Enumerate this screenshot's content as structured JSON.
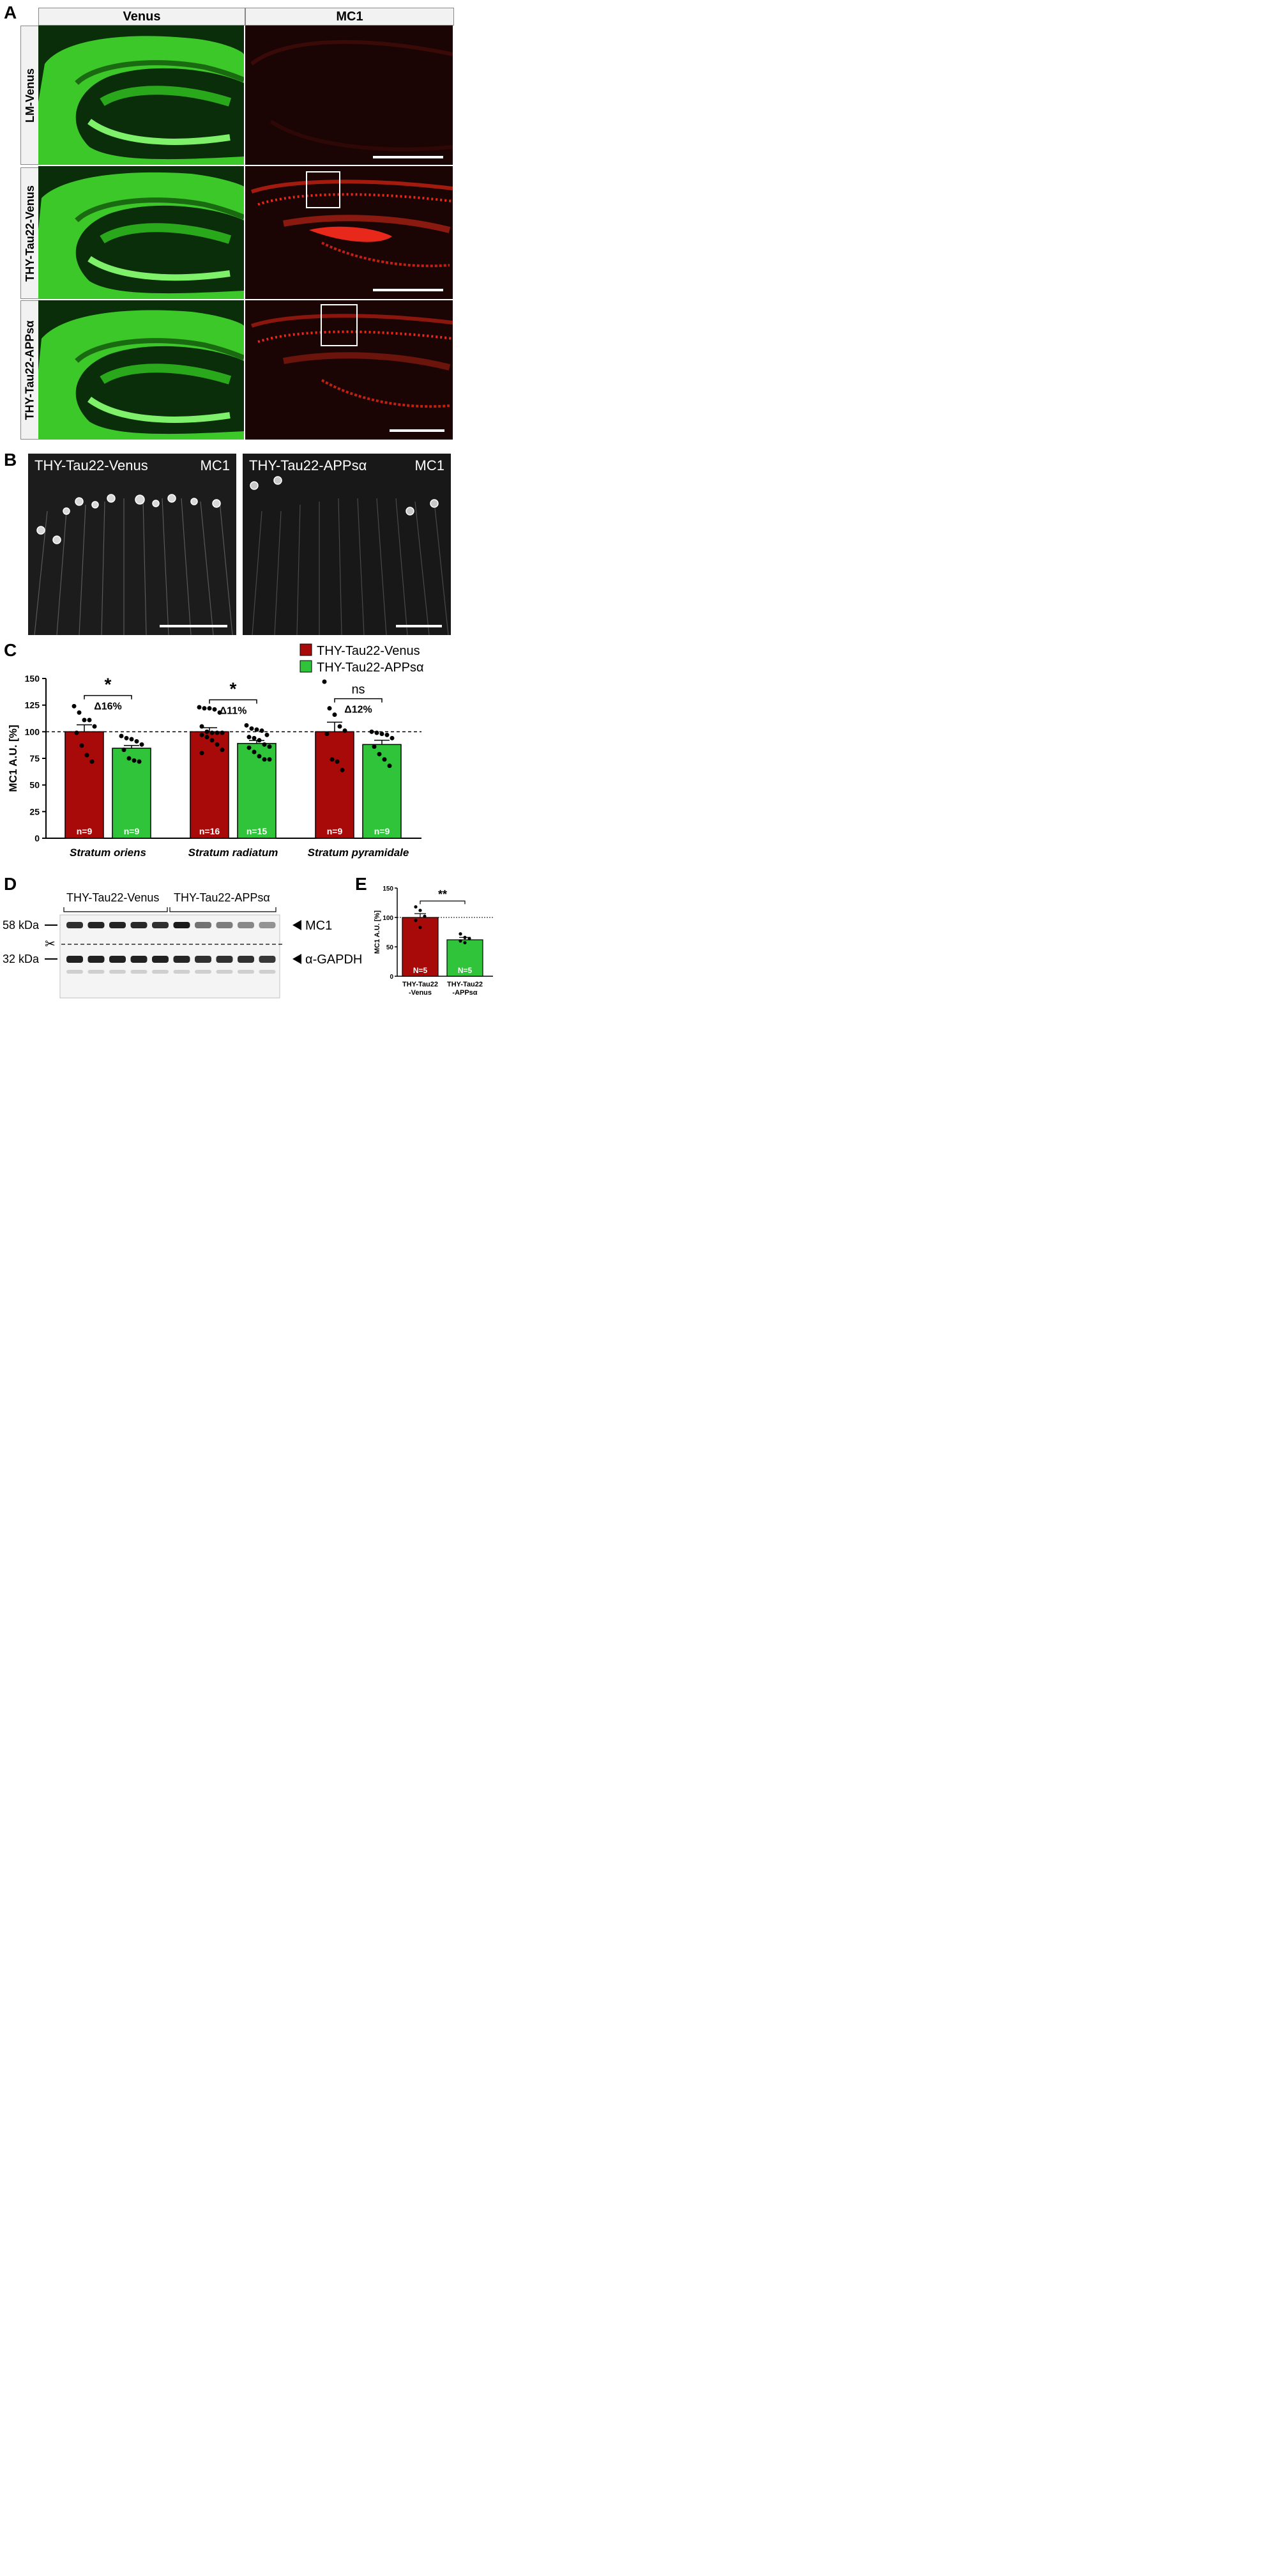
{
  "panelA": {
    "letter": "A",
    "columns": [
      "Venus",
      "MC1"
    ],
    "rows": [
      "LM-Venus",
      "THY-Tau22-Venus",
      "THY-Tau22-APPsα"
    ],
    "colors": {
      "venus": "#3fd12a",
      "mc1": "#e8281a",
      "header_bg": "#f2f2f2"
    }
  },
  "panelB": {
    "letter": "B",
    "images": [
      {
        "left_label": "THY-Tau22-Venus",
        "right_label": "MC1"
      },
      {
        "left_label": "THY-Tau22-APPsα",
        "right_label": "MC1"
      }
    ]
  },
  "panelC": {
    "letter": "C",
    "chart_data": {
      "type": "bar",
      "ylabel": "MC1 A.U. [%]",
      "ylim": [
        0,
        150
      ],
      "yticks": [
        0,
        25,
        50,
        75,
        100,
        125,
        150
      ],
      "reference_line": 100,
      "categories": [
        "Stratum oriens",
        "Stratum radiatum",
        "Stratum pyramidale"
      ],
      "series": [
        {
          "name": "THY-Tau22-Venus",
          "color": "#a80a0a",
          "values": [
            100,
            100,
            100
          ],
          "sem": [
            6.5,
            3.8,
            9.0
          ],
          "n": [
            "n=9",
            "n=16",
            "n=9"
          ],
          "points": [
            [
              124,
              118,
              111,
              111,
              105,
              99,
              87,
              78,
              72
            ],
            [
              123,
              122,
              122,
              121,
              118,
              105,
              100,
              99,
              99,
              99,
              97,
              95,
              92,
              88,
              83,
              80
            ],
            [
              147,
              122,
              116,
              105,
              101,
              98,
              74,
              72,
              64
            ]
          ]
        },
        {
          "name": "THY-Tau22-APPsα",
          "color": "#2fc43a",
          "values": [
            84.5,
            89,
            88
          ],
          "sem": [
            2.6,
            2.8,
            4.0
          ],
          "n": [
            "n=9",
            "n=15",
            "n=9"
          ],
          "points": [
            [
              96,
              94,
              93,
              91,
              88,
              83,
              75,
              73,
              72
            ],
            [
              106,
              103,
              102,
              101,
              97,
              95,
              94,
              92,
              88,
              86,
              85,
              81,
              77,
              74,
              74
            ],
            [
              100,
              99,
              98,
              97,
              94,
              86,
              79,
              74,
              68
            ]
          ]
        }
      ],
      "comparisons": [
        {
          "sig": "*",
          "delta": "Δ16%"
        },
        {
          "sig": "*",
          "delta": "Δ11%"
        },
        {
          "sig": "ns",
          "delta": "Δ12%"
        }
      ],
      "legend_position": "top-right"
    }
  },
  "panelD": {
    "letter": "D",
    "group_labels": [
      "THY-Tau22-Venus",
      "THY-Tau22-APPsα"
    ],
    "markers": [
      "58 kDa",
      "32 kDa"
    ],
    "band_labels": [
      "MC1",
      "α-GAPDH"
    ],
    "mc1_band_intensity": [
      0.85,
      0.9,
      0.9,
      0.88,
      0.85,
      0.95,
      0.55,
      0.5,
      0.45,
      0.4
    ],
    "gapdh_band_intensity": [
      0.92,
      0.92,
      0.92,
      0.92,
      0.92,
      0.9,
      0.85,
      0.85,
      0.85,
      0.82
    ]
  },
  "panelE": {
    "letter": "E",
    "chart_data": {
      "type": "bar",
      "ylabel": "MC1 A.U. [%]",
      "ylim": [
        0,
        150
      ],
      "yticks": [
        0,
        50,
        100,
        150
      ],
      "reference_line": 100,
      "categories": [
        "THY-Tau22\n-Venus",
        "THY-Tau22\n-APPsα"
      ],
      "values": [
        100,
        62
      ],
      "sem": [
        6.5,
        4.0
      ],
      "colors": [
        "#a80a0a",
        "#2fc43a"
      ],
      "n": [
        "N=5",
        "N=5"
      ],
      "points": [
        [
          118,
          112,
          102,
          95,
          83
        ],
        [
          72,
          66,
          64,
          60,
          57
        ]
      ],
      "significance": "**"
    }
  }
}
